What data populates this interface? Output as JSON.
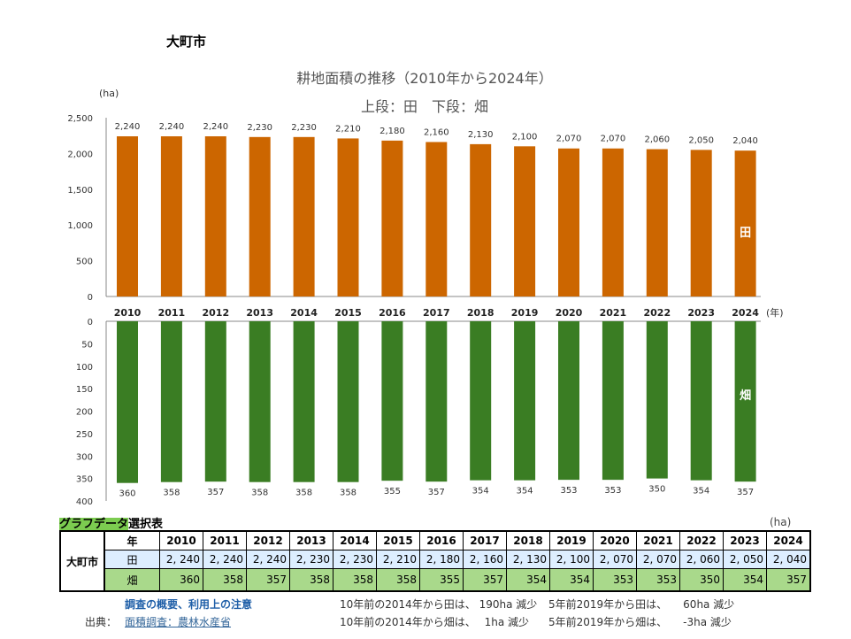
{
  "city": "大町市",
  "chart_data": {
    "type": "bar",
    "title": "耕地面積の推移（2010年から2024年）",
    "subtitle": "上段：田　下段：畑",
    "categories": [
      "2010",
      "2011",
      "2012",
      "2013",
      "2014",
      "2015",
      "2016",
      "2017",
      "2018",
      "2019",
      "2020",
      "2021",
      "2022",
      "2023",
      "2024"
    ],
    "xlabel": "(年)",
    "ylabel": "(ha)",
    "series": [
      {
        "name": "田",
        "color": "#cc6600",
        "values": [
          2240,
          2240,
          2240,
          2230,
          2230,
          2210,
          2180,
          2160,
          2130,
          2100,
          2070,
          2070,
          2060,
          2050,
          2040
        ],
        "labels": [
          "2,240",
          "2,240",
          "2,240",
          "2,230",
          "2,230",
          "2,210",
          "2,180",
          "2,160",
          "2,130",
          "2,100",
          "2,070",
          "2,070",
          "2,060",
          "2,050",
          "2,040"
        ],
        "ylim": [
          0,
          2500
        ],
        "ticks": [
          "0",
          "500",
          "1,000",
          "1,500",
          "2,000",
          "2,500"
        ]
      },
      {
        "name": "畑",
        "color": "#3a7d23",
        "values": [
          360,
          358,
          357,
          358,
          358,
          358,
          355,
          357,
          354,
          354,
          353,
          353,
          350,
          354,
          357
        ],
        "ylim": [
          0,
          400
        ],
        "inverted": true,
        "ticks": [
          "0",
          "50",
          "100",
          "150",
          "200",
          "250",
          "300",
          "350",
          "400"
        ]
      }
    ]
  },
  "table": {
    "title_highlight": "グラフデータ",
    "title_rest": "選択表",
    "unit": "(ha)",
    "city": "大町市",
    "year_label": "年",
    "rice_label": "田",
    "field_label": "畑",
    "years": [
      "2010",
      "2011",
      "2012",
      "2013",
      "2014",
      "2015",
      "2016",
      "2017",
      "2018",
      "2019",
      "2020",
      "2021",
      "2022",
      "2023",
      "2024"
    ],
    "rice": [
      "2, 240",
      "2, 240",
      "2, 240",
      "2, 230",
      "2, 230",
      "2, 210",
      "2, 180",
      "2, 160",
      "2, 130",
      "2, 100",
      "2, 070",
      "2, 070",
      "2, 060",
      "2, 050",
      "2, 040"
    ],
    "field": [
      "360",
      "358",
      "357",
      "358",
      "358",
      "358",
      "355",
      "357",
      "354",
      "354",
      "353",
      "353",
      "350",
      "354",
      "357"
    ]
  },
  "footer": {
    "overview_link": "調査の概要、利用上の注意",
    "source_label": "出典：",
    "source_link": "面積調査：農林水産省",
    "note1": "10年前の2014年から田は、 190ha 減少",
    "note2": "5年前2019年から田は、　　60ha 減少",
    "note3": "10年前の2014年から畑は、　 1ha 減少",
    "note4": "5年前2019年から畑は、　　-3ha 減少"
  }
}
